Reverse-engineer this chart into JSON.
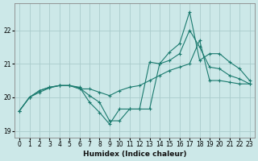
{
  "xlabel": "Humidex (Indice chaleur)",
  "background_color": "#cce8e8",
  "grid_color": "#aacccc",
  "line_color": "#1a7a6e",
  "x": [
    0,
    1,
    2,
    3,
    4,
    5,
    6,
    7,
    8,
    9,
    10,
    11,
    12,
    13,
    14,
    15,
    16,
    17,
    18,
    19,
    20,
    21,
    22,
    23
  ],
  "y_line1": [
    19.6,
    20.0,
    20.2,
    20.3,
    20.35,
    20.35,
    20.25,
    20.25,
    20.15,
    20.05,
    20.2,
    20.3,
    20.35,
    20.5,
    20.65,
    20.8,
    20.9,
    21.0,
    21.7,
    20.5,
    20.5,
    20.45,
    20.4,
    20.4
  ],
  "y_line2": [
    19.6,
    20.0,
    20.2,
    20.3,
    20.35,
    20.35,
    20.3,
    19.85,
    19.55,
    19.2,
    19.65,
    19.65,
    19.65,
    21.05,
    21.0,
    21.35,
    21.6,
    22.55,
    21.1,
    21.3,
    21.3,
    21.05,
    20.85,
    20.5
  ],
  "y_line3": [
    19.6,
    20.0,
    20.15,
    20.28,
    20.35,
    20.35,
    20.28,
    20.05,
    19.85,
    19.3,
    19.3,
    19.65,
    19.65,
    19.65,
    21.0,
    21.1,
    21.3,
    22.0,
    21.5,
    20.9,
    20.85,
    20.65,
    20.55,
    20.4
  ],
  "ylim": [
    18.8,
    22.8
  ],
  "yticks": [
    19,
    20,
    21,
    22
  ],
  "xlim": [
    -0.5,
    23.5
  ],
  "xticks": [
    0,
    1,
    2,
    3,
    4,
    5,
    6,
    7,
    8,
    9,
    10,
    11,
    12,
    13,
    14,
    15,
    16,
    17,
    18,
    19,
    20,
    21,
    22,
    23
  ]
}
